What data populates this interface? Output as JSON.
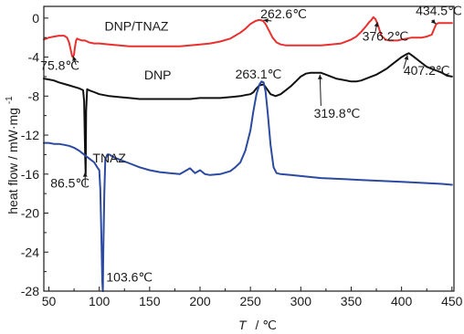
{
  "chart_data": {
    "type": "line",
    "title": "",
    "xlabel": "T",
    "xlabel_unit": "/ ℃",
    "ylabel": "heat flow / mW·mg",
    "ylabel_exp": "-1",
    "xlim": [
      45,
      452
    ],
    "ylim": [
      -28,
      1.2
    ],
    "xticks": [
      50,
      100,
      150,
      200,
      250,
      300,
      350,
      400,
      450
    ],
    "yticks": [
      0,
      -4,
      -8,
      -12,
      -16,
      -20,
      -24,
      -28
    ],
    "grid": false,
    "legend": "none",
    "series": [
      {
        "name": "DNP/TNAZ",
        "color": "#e8312f",
        "x": [
          45,
          50,
          55,
          60,
          65,
          68,
          70,
          72,
          73,
          74,
          75,
          75.8,
          77,
          78,
          80,
          83,
          86,
          90,
          95,
          100,
          110,
          120,
          130,
          140,
          150,
          160,
          170,
          180,
          190,
          200,
          210,
          220,
          230,
          240,
          245,
          250,
          255,
          258,
          260,
          262.6,
          265,
          268,
          272,
          276,
          280,
          285,
          290,
          300,
          310,
          320,
          330,
          340,
          350,
          355,
          360,
          365,
          368,
          370,
          372,
          374,
          376.2,
          378,
          380,
          384,
          388,
          392,
          396,
          400,
          405,
          410,
          415,
          420,
          425,
          430,
          432,
          434.5,
          437,
          440,
          445,
          450
        ],
        "y": [
          -2.2,
          -2.0,
          -1.9,
          -1.8,
          -1.8,
          -2.0,
          -2.5,
          -3.4,
          -3.9,
          -4.0,
          -3.7,
          -3.0,
          -2.3,
          -2.1,
          -2.2,
          -2.3,
          -2.3,
          -2.5,
          -2.6,
          -2.6,
          -2.7,
          -2.8,
          -2.9,
          -2.9,
          -2.9,
          -2.9,
          -2.9,
          -2.9,
          -2.8,
          -2.7,
          -2.6,
          -2.4,
          -2.1,
          -1.5,
          -1.1,
          -0.6,
          -0.3,
          -0.2,
          -0.2,
          -0.3,
          -0.6,
          -1.2,
          -2.0,
          -2.5,
          -2.7,
          -2.8,
          -2.8,
          -2.8,
          -2.8,
          -2.8,
          -2.7,
          -2.6,
          -2.2,
          -1.9,
          -1.4,
          -0.8,
          -0.4,
          -0.2,
          0.1,
          -0.1,
          -0.6,
          -1.2,
          -1.8,
          -2.2,
          -2.3,
          -2.3,
          -2.3,
          -2.2,
          -2.1,
          -2.0,
          -2.0,
          -2.0,
          -1.9,
          -1.7,
          -1.2,
          -0.6,
          -0.5,
          -0.5,
          -0.5,
          -0.5
        ]
      },
      {
        "name": "DNP",
        "color": "#111111",
        "x": [
          45,
          50,
          55,
          60,
          70,
          80,
          84,
          85,
          86,
          86.5,
          87,
          88,
          90,
          95,
          100,
          110,
          120,
          130,
          140,
          150,
          160,
          170,
          180,
          190,
          200,
          210,
          220,
          230,
          240,
          245,
          250,
          253,
          256,
          259,
          263.1,
          266,
          270,
          275,
          280,
          285,
          290,
          295,
          300,
          305,
          310,
          315,
          319.8,
          325,
          330,
          335,
          340,
          345,
          350,
          355,
          360,
          365,
          370,
          375,
          380,
          385,
          390,
          395,
          400,
          405,
          407.2,
          410,
          415,
          420,
          425,
          430,
          435,
          440,
          445,
          450
        ],
        "y": [
          -6.2,
          -6.3,
          -6.4,
          -6.6,
          -6.9,
          -7.2,
          -7.4,
          -8.5,
          -14.0,
          -16.0,
          -9.5,
          -7.3,
          -7.4,
          -7.6,
          -7.8,
          -8.0,
          -8.1,
          -8.2,
          -8.3,
          -8.3,
          -8.3,
          -8.3,
          -8.3,
          -8.3,
          -8.2,
          -8.2,
          -8.2,
          -8.1,
          -8.0,
          -7.9,
          -7.8,
          -7.6,
          -7.2,
          -6.9,
          -6.8,
          -7.2,
          -7.8,
          -8.0,
          -7.8,
          -7.4,
          -7.0,
          -6.5,
          -6.0,
          -5.7,
          -5.6,
          -5.6,
          -5.6,
          -5.8,
          -6.0,
          -6.2,
          -6.3,
          -6.4,
          -6.5,
          -6.5,
          -6.4,
          -6.2,
          -6.0,
          -5.8,
          -5.5,
          -5.2,
          -4.8,
          -4.4,
          -4.0,
          -3.7,
          -3.6,
          -3.8,
          -4.2,
          -4.6,
          -5.0,
          -5.2,
          -5.4,
          -5.6,
          -5.9,
          -6.0
        ]
      },
      {
        "name": "TNAZ",
        "color": "#2b4aa0",
        "x": [
          45,
          50,
          55,
          60,
          65,
          70,
          75,
          80,
          85,
          90,
          95,
          98,
          100,
          101,
          102,
          103,
          103.6,
          104,
          105,
          106,
          108,
          110,
          115,
          120,
          130,
          140,
          150,
          160,
          170,
          180,
          185,
          190,
          195,
          200,
          205,
          210,
          220,
          230,
          235,
          240,
          245,
          250,
          253,
          256,
          259,
          261,
          263.1,
          265,
          267,
          270,
          273,
          276,
          280,
          290,
          300,
          320,
          340,
          360,
          380,
          400,
          420,
          440,
          450
        ],
        "y": [
          -12.8,
          -12.8,
          -12.9,
          -12.9,
          -13.0,
          -13.1,
          -13.3,
          -13.6,
          -14.0,
          -14.4,
          -14.8,
          -15.3,
          -15.6,
          -17.5,
          -22.0,
          -27.0,
          -28.0,
          -24.0,
          -18.0,
          -14.5,
          -14.0,
          -14.0,
          -14.3,
          -14.5,
          -14.9,
          -15.3,
          -15.6,
          -15.8,
          -15.9,
          -16.0,
          -15.7,
          -15.4,
          -15.9,
          -15.6,
          -16.0,
          -16.1,
          -16.0,
          -15.7,
          -15.3,
          -14.8,
          -13.6,
          -11.5,
          -9.5,
          -7.8,
          -6.8,
          -6.5,
          -6.6,
          -7.5,
          -9.5,
          -13.0,
          -15.3,
          -15.9,
          -16.0,
          -16.1,
          -16.2,
          -16.4,
          -16.5,
          -16.6,
          -16.7,
          -16.8,
          -16.9,
          -17.0,
          -17.1
        ]
      }
    ],
    "annotations": [
      {
        "text": "DNP/TNAZ",
        "x": 137,
        "y": -1.3
      },
      {
        "text": "262.6℃",
        "x": 283,
        "y": 0.0
      },
      {
        "text": "434.5℃",
        "x": 437,
        "y": 0.3
      },
      {
        "text": "376.2℃",
        "x": 384,
        "y": -2.3
      },
      {
        "text": "75.8℃",
        "x": 61,
        "y": -5.3
      },
      {
        "text": "DNP",
        "x": 158,
        "y": -6.3
      },
      {
        "text": "407.2℃",
        "x": 425,
        "y": -5.8
      },
      {
        "text": "263.1℃",
        "x": 258,
        "y": -6.2
      },
      {
        "text": "319.8℃",
        "x": 336,
        "y": -10.2
      },
      {
        "text": "TNAZ",
        "x": 110,
        "y": -14.8
      },
      {
        "text": "86.5℃",
        "x": 71,
        "y": -17.4
      },
      {
        "text": "103.6℃",
        "x": 130,
        "y": -27.0
      }
    ],
    "arrows": [
      {
        "from": [
          77,
          -4.8
        ],
        "to": [
          74,
          -3.9
        ]
      },
      {
        "from": [
          271,
          -0.3
        ],
        "to": [
          263,
          -0.2
        ]
      },
      {
        "from": [
          430,
          -0.2
        ],
        "to": [
          434,
          -0.6
        ]
      },
      {
        "from": [
          374,
          -1.4
        ],
        "to": [
          376,
          -0.4
        ]
      },
      {
        "from": [
          320,
          -9.0
        ],
        "to": [
          319,
          -5.8
        ]
      },
      {
        "from": [
          402,
          -5.2
        ],
        "to": [
          406,
          -3.8
        ]
      },
      {
        "from": [
          86,
          -17.2
        ],
        "to": [
          86,
          -15.8
        ]
      }
    ]
  }
}
